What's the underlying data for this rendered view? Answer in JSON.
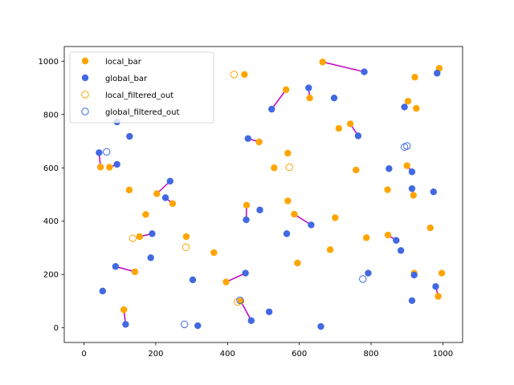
{
  "chart_data": {
    "type": "scatter",
    "xlim": [
      -55,
      1055
    ],
    "ylim": [
      -55,
      1055
    ],
    "xticks": [
      "0",
      "200",
      "400",
      "600",
      "800",
      "1000"
    ],
    "yticks": [
      "0",
      "200",
      "400",
      "600",
      "800",
      "1000"
    ],
    "xtick_values": [
      0,
      200,
      400,
      600,
      800,
      1000
    ],
    "ytick_values": [
      0,
      200,
      400,
      600,
      800,
      1000
    ],
    "grid": false,
    "legend_position": "upper-left",
    "colors": {
      "local": "#ffa500",
      "global": "#4169e1",
      "link": "#bf00bf"
    },
    "series": [
      {
        "name": "local_bar",
        "marker": "filled",
        "color": "#ffa500",
        "points": [
          [
            447,
            950
          ],
          [
            563,
            893
          ],
          [
            629,
            862
          ],
          [
            665,
            997
          ],
          [
            710,
            748
          ],
          [
            742,
            765
          ],
          [
            568,
            655
          ],
          [
            488,
            697
          ],
          [
            530,
            600
          ],
          [
            758,
            592
          ],
          [
            568,
            476
          ],
          [
            453,
            460
          ],
          [
            586,
            426
          ],
          [
            700,
            413
          ],
          [
            595,
            243
          ],
          [
            686,
            293
          ],
          [
            787,
            338
          ],
          [
            846,
            518
          ],
          [
            847,
            348
          ],
          [
            900,
            608
          ],
          [
            903,
            850
          ],
          [
            918,
            497
          ],
          [
            922,
            940
          ],
          [
            926,
            823
          ],
          [
            965,
            375
          ],
          [
            990,
            973
          ],
          [
            997,
            205
          ],
          [
            987,
            118
          ],
          [
            920,
            205
          ],
          [
            46,
            603
          ],
          [
            71,
            602
          ],
          [
            126,
            517
          ],
          [
            172,
            425
          ],
          [
            203,
            503
          ],
          [
            247,
            466
          ],
          [
            142,
            210
          ],
          [
            155,
            342
          ],
          [
            285,
            342
          ],
          [
            362,
            282
          ],
          [
            396,
            172
          ],
          [
            437,
            100
          ],
          [
            111,
            68
          ]
        ]
      },
      {
        "name": "global_bar",
        "marker": "filled",
        "color": "#4169e1",
        "points": [
          [
            626,
            900
          ],
          [
            697,
            862
          ],
          [
            523,
            820
          ],
          [
            781,
            960
          ],
          [
            764,
            720
          ],
          [
            457,
            710
          ],
          [
            42,
            657
          ],
          [
            92,
            613
          ],
          [
            92,
            772
          ],
          [
            127,
            718
          ],
          [
            240,
            550
          ],
          [
            227,
            488
          ],
          [
            190,
            353
          ],
          [
            186,
            263
          ],
          [
            88,
            230
          ],
          [
            52,
            138
          ],
          [
            116,
            13
          ],
          [
            303,
            180
          ],
          [
            317,
            8
          ],
          [
            450,
            205
          ],
          [
            452,
            405
          ],
          [
            466,
            27
          ],
          [
            490,
            442
          ],
          [
            516,
            60
          ],
          [
            565,
            353
          ],
          [
            633,
            386
          ],
          [
            660,
            5
          ],
          [
            792,
            205
          ],
          [
            850,
            597
          ],
          [
            870,
            328
          ],
          [
            883,
            290
          ],
          [
            893,
            828
          ],
          [
            914,
            585
          ],
          [
            914,
            522
          ],
          [
            914,
            102
          ],
          [
            920,
            198
          ],
          [
            974,
            510
          ],
          [
            980,
            155
          ],
          [
            984,
            955
          ]
        ]
      },
      {
        "name": "local_filtered_out",
        "marker": "hollow",
        "color": "#ffa500",
        "points": [
          [
            418,
            950
          ],
          [
            572,
            602
          ],
          [
            136,
            336
          ],
          [
            284,
            302
          ],
          [
            428,
            97
          ]
        ]
      },
      {
        "name": "global_filtered_out",
        "marker": "hollow",
        "color": "#4169e1",
        "points": [
          [
            63,
            660
          ],
          [
            280,
            13
          ],
          [
            435,
            103
          ],
          [
            777,
            183
          ],
          [
            893,
            678
          ],
          [
            900,
            682
          ]
        ]
      }
    ],
    "links": [
      [
        [
          563,
          893
        ],
        [
          523,
          820
        ]
      ],
      [
        [
          629,
          862
        ],
        [
          626,
          900
        ]
      ],
      [
        [
          665,
          997
        ],
        [
          781,
          960
        ]
      ],
      [
        [
          742,
          765
        ],
        [
          764,
          720
        ]
      ],
      [
        [
          488,
          697
        ],
        [
          457,
          710
        ]
      ],
      [
        [
          453,
          460
        ],
        [
          452,
          405
        ]
      ],
      [
        [
          586,
          426
        ],
        [
          633,
          386
        ]
      ],
      [
        [
          847,
          348
        ],
        [
          870,
          328
        ]
      ],
      [
        [
          900,
          608
        ],
        [
          914,
          585
        ]
      ],
      [
        [
          918,
          497
        ],
        [
          914,
          522
        ]
      ],
      [
        [
          903,
          850
        ],
        [
          893,
          828
        ]
      ],
      [
        [
          987,
          118
        ],
        [
          980,
          155
        ]
      ],
      [
        [
          920,
          205
        ],
        [
          920,
          198
        ]
      ],
      [
        [
          46,
          603
        ],
        [
          42,
          657
        ]
      ],
      [
        [
          71,
          602
        ],
        [
          92,
          613
        ]
      ],
      [
        [
          203,
          503
        ],
        [
          240,
          550
        ]
      ],
      [
        [
          247,
          466
        ],
        [
          227,
          488
        ]
      ],
      [
        [
          155,
          342
        ],
        [
          190,
          353
        ]
      ],
      [
        [
          142,
          210
        ],
        [
          88,
          230
        ]
      ],
      [
        [
          396,
          172
        ],
        [
          450,
          205
        ]
      ],
      [
        [
          437,
          100
        ],
        [
          466,
          27
        ]
      ],
      [
        [
          111,
          68
        ],
        [
          116,
          13
        ]
      ]
    ]
  }
}
